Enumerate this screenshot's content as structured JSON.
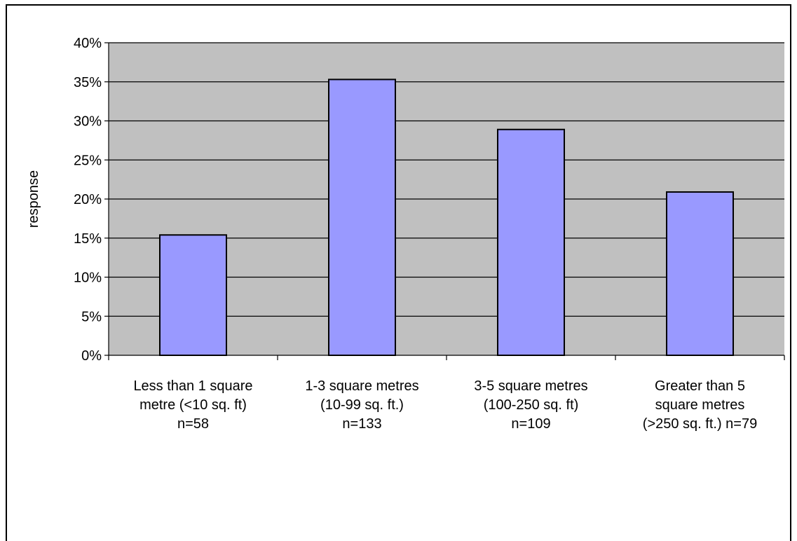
{
  "chart_data": {
    "type": "bar",
    "categories": [
      [
        "Less than 1 square",
        "metre (<10 sq. ft)",
        "n=58"
      ],
      [
        "1-3 square metres",
        "(10-99 sq. ft.)",
        "n=133"
      ],
      [
        "3-5 square metres",
        "(100-250 sq. ft)",
        "n=109"
      ],
      [
        "Greater than 5",
        "square metres",
        "(>250 sq. ft.) n=79"
      ]
    ],
    "values": [
      15.4,
      35.3,
      28.9,
      20.9
    ],
    "ylabel": "response",
    "xlabel": "",
    "ylim": [
      0,
      40
    ],
    "yticks": [
      "0%",
      "5%",
      "10%",
      "15%",
      "20%",
      "25%",
      "30%",
      "35%",
      "40%"
    ],
    "grid": true,
    "colors": {
      "plot_background": "#c0c0c0",
      "bar_fill": "#9999ff",
      "bar_stroke": "#000000",
      "gridline": "#000000"
    }
  }
}
